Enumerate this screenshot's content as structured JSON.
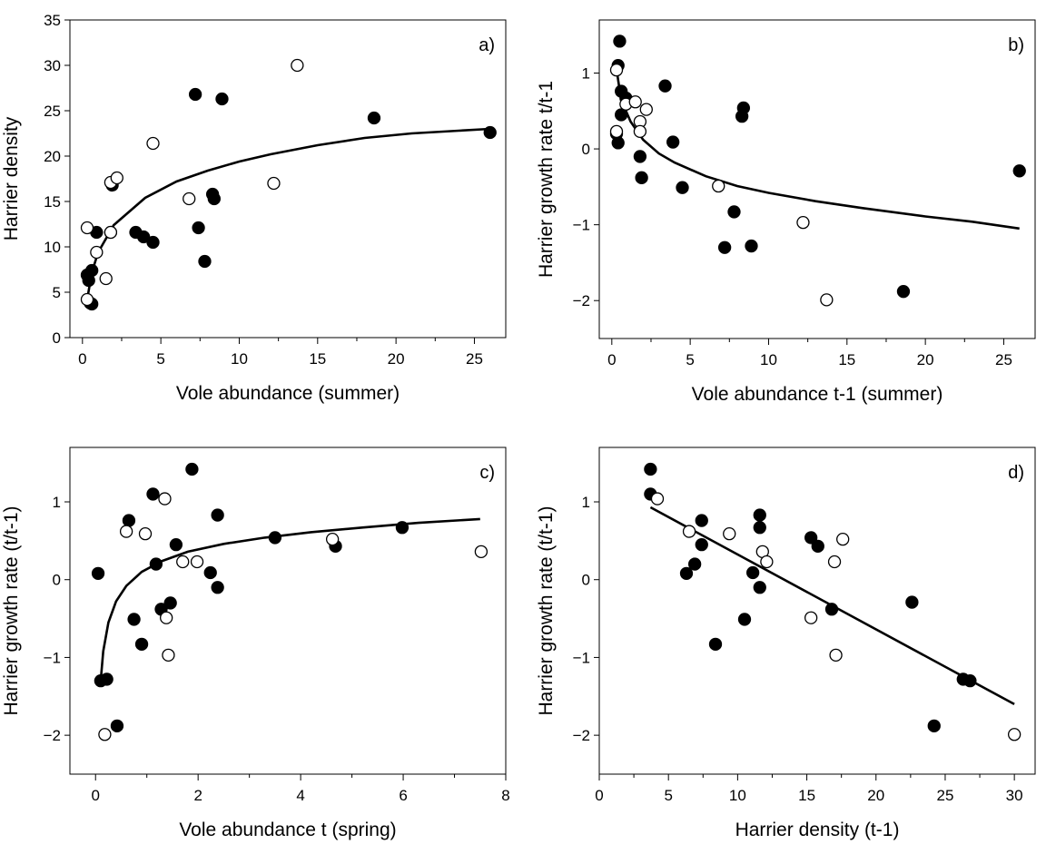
{
  "chart_data": [
    {
      "type": "scatter",
      "panel_label": "a)",
      "xlabel": "Vole abundance (summer)",
      "ylabel": "Harrier density",
      "xlim": [
        -0.8,
        27
      ],
      "ylim": [
        0,
        35
      ],
      "xticks": [
        0,
        5,
        10,
        15,
        20,
        25
      ],
      "yticks": [
        0,
        5,
        10,
        15,
        20,
        25,
        30,
        35
      ],
      "grid": false,
      "fit": {
        "type": "log-curve",
        "x": [
          0.3,
          0.6,
          1,
          2,
          4,
          6,
          8,
          10,
          12,
          15,
          18,
          21,
          24,
          26
        ],
        "y": [
          4.2,
          7.2,
          9.4,
          12.4,
          15.4,
          17.2,
          18.4,
          19.4,
          20.2,
          21.2,
          22.0,
          22.5,
          22.8,
          23.0
        ]
      },
      "series": [
        {
          "marker": "filled",
          "points": [
            [
              0.3,
              6.9
            ],
            [
              0.4,
              6.3
            ],
            [
              0.5,
              3.8
            ],
            [
              0.6,
              3.7
            ],
            [
              0.6,
              7.4
            ],
            [
              0.9,
              11.6
            ],
            [
              1.8,
              11.6
            ],
            [
              1.9,
              16.8
            ],
            [
              3.4,
              11.6
            ],
            [
              3.9,
              11.1
            ],
            [
              4.5,
              10.5
            ],
            [
              7.2,
              26.8
            ],
            [
              7.4,
              12.1
            ],
            [
              7.8,
              8.4
            ],
            [
              8.3,
              15.8
            ],
            [
              8.4,
              15.3
            ],
            [
              8.9,
              26.3
            ],
            [
              18.6,
              24.2
            ],
            [
              26.0,
              22.6
            ]
          ]
        },
        {
          "marker": "open",
          "points": [
            [
              0.3,
              12.1
            ],
            [
              0.3,
              4.2
            ],
            [
              0.9,
              9.4
            ],
            [
              1.5,
              6.5
            ],
            [
              1.8,
              11.6
            ],
            [
              1.8,
              17.1
            ],
            [
              2.2,
              17.6
            ],
            [
              4.5,
              21.4
            ],
            [
              6.8,
              15.3
            ],
            [
              12.2,
              17.0
            ],
            [
              13.7,
              30.0
            ]
          ]
        }
      ]
    },
    {
      "type": "scatter",
      "panel_label": "b)",
      "xlabel": "Vole abundance t-1 (summer)",
      "ylabel": "Harrier growth rate t/t-1",
      "xlim": [
        -0.8,
        27
      ],
      "ylim": [
        -2.5,
        1.7
      ],
      "xticks": [
        0,
        5,
        10,
        15,
        20,
        25
      ],
      "yticks": [
        -2,
        -1,
        0,
        1
      ],
      "grid": false,
      "fit": {
        "type": "log-curve",
        "x": [
          0.3,
          0.5,
          0.8,
          1.2,
          2,
          3,
          4,
          6,
          8,
          10,
          13,
          16,
          20,
          23,
          26
        ],
        "y": [
          1.05,
          0.78,
          0.55,
          0.36,
          0.12,
          -0.06,
          -0.18,
          -0.36,
          -0.49,
          -0.58,
          -0.69,
          -0.78,
          -0.89,
          -0.96,
          -1.05
        ]
      },
      "series": [
        {
          "marker": "filled",
          "points": [
            [
              0.3,
              0.2
            ],
            [
              0.4,
              0.08
            ],
            [
              0.4,
              1.1
            ],
            [
              0.5,
              1.42
            ],
            [
              0.6,
              0.76
            ],
            [
              0.6,
              0.45
            ],
            [
              0.9,
              0.67
            ],
            [
              1.8,
              -0.1
            ],
            [
              1.9,
              -0.38
            ],
            [
              3.4,
              0.83
            ],
            [
              3.9,
              0.09
            ],
            [
              4.5,
              -0.51
            ],
            [
              7.2,
              -1.3
            ],
            [
              7.8,
              -0.83
            ],
            [
              8.3,
              0.43
            ],
            [
              8.4,
              0.54
            ],
            [
              8.9,
              -1.28
            ],
            [
              18.6,
              -1.88
            ],
            [
              26.0,
              -0.29
            ]
          ]
        },
        {
          "marker": "open",
          "points": [
            [
              0.3,
              1.04
            ],
            [
              0.3,
              0.23
            ],
            [
              0.9,
              0.59
            ],
            [
              1.5,
              0.62
            ],
            [
              1.8,
              0.36
            ],
            [
              1.8,
              0.23
            ],
            [
              2.2,
              0.52
            ],
            [
              6.8,
              -0.49
            ],
            [
              12.2,
              -0.97
            ],
            [
              13.7,
              -1.99
            ]
          ]
        }
      ]
    },
    {
      "type": "scatter",
      "panel_label": "c)",
      "xlabel": "Vole abundance t (spring)",
      "ylabel": "Harrier growth rate (t/t-1)",
      "xlim": [
        -0.5,
        8
      ],
      "ylim": [
        -2.5,
        1.7
      ],
      "xticks": [
        0,
        2,
        4,
        6,
        8
      ],
      "yticks": [
        -2,
        -1,
        0,
        1
      ],
      "grid": false,
      "fit": {
        "type": "log-curve",
        "x": [
          0.1,
          0.15,
          0.25,
          0.4,
          0.6,
          0.9,
          1.3,
          1.8,
          2.5,
          3.3,
          4.2,
          5.2,
          6.3,
          7.5
        ],
        "y": [
          -1.3,
          -0.92,
          -0.55,
          -0.28,
          -0.08,
          0.1,
          0.24,
          0.36,
          0.46,
          0.54,
          0.61,
          0.67,
          0.73,
          0.78
        ]
      },
      "series": [
        {
          "marker": "filled",
          "points": [
            [
              0.05,
              0.08
            ],
            [
              0.1,
              -1.3
            ],
            [
              0.22,
              -1.28
            ],
            [
              0.42,
              -1.88
            ],
            [
              0.65,
              0.76
            ],
            [
              0.75,
              -0.51
            ],
            [
              0.9,
              -0.83
            ],
            [
              1.12,
              1.1
            ],
            [
              1.18,
              0.2
            ],
            [
              1.28,
              -0.38
            ],
            [
              1.46,
              -0.3
            ],
            [
              1.57,
              0.45
            ],
            [
              1.88,
              1.42
            ],
            [
              2.24,
              0.09
            ],
            [
              2.38,
              -0.1
            ],
            [
              2.38,
              0.83
            ],
            [
              3.5,
              0.54
            ],
            [
              4.68,
              0.43
            ],
            [
              5.98,
              0.67
            ]
          ]
        },
        {
          "marker": "open",
          "points": [
            [
              0.18,
              -1.99
            ],
            [
              0.6,
              0.62
            ],
            [
              0.97,
              0.59
            ],
            [
              1.35,
              1.04
            ],
            [
              1.38,
              -0.49
            ],
            [
              1.42,
              -0.97
            ],
            [
              1.7,
              0.23
            ],
            [
              1.98,
              0.23
            ],
            [
              4.62,
              0.52
            ],
            [
              7.52,
              0.36
            ]
          ]
        }
      ]
    },
    {
      "type": "scatter",
      "panel_label": "d)",
      "xlabel": "Harrier density (t-1)",
      "ylabel": "Harrier growth rate (t/t-1)",
      "xlim": [
        0,
        31.5
      ],
      "ylim": [
        -2.5,
        1.7
      ],
      "xticks": [
        0,
        5,
        10,
        15,
        20,
        25,
        30
      ],
      "yticks": [
        -2,
        -1,
        0,
        1
      ],
      "grid": false,
      "fit": {
        "type": "line",
        "x": [
          3.7,
          30.0
        ],
        "y": [
          0.93,
          -1.6
        ]
      },
      "series": [
        {
          "marker": "filled",
          "points": [
            [
              3.7,
              1.42
            ],
            [
              3.7,
              1.1
            ],
            [
              6.3,
              0.08
            ],
            [
              6.9,
              0.2
            ],
            [
              7.4,
              0.76
            ],
            [
              7.4,
              0.45
            ],
            [
              8.4,
              -0.83
            ],
            [
              10.5,
              -0.51
            ],
            [
              11.1,
              0.09
            ],
            [
              11.6,
              0.67
            ],
            [
              11.6,
              0.83
            ],
            [
              11.6,
              -0.1
            ],
            [
              15.3,
              0.54
            ],
            [
              15.8,
              0.43
            ],
            [
              16.8,
              -0.38
            ],
            [
              22.6,
              -0.29
            ],
            [
              24.2,
              -1.88
            ],
            [
              26.3,
              -1.28
            ],
            [
              26.8,
              -1.3
            ]
          ]
        },
        {
          "marker": "open",
          "points": [
            [
              4.2,
              1.04
            ],
            [
              6.5,
              0.62
            ],
            [
              9.4,
              0.59
            ],
            [
              11.8,
              0.36
            ],
            [
              12.1,
              0.23
            ],
            [
              15.3,
              -0.49
            ],
            [
              17.0,
              0.23
            ],
            [
              17.1,
              -0.97
            ],
            [
              17.6,
              0.52
            ],
            [
              30.0,
              -1.99
            ]
          ]
        }
      ]
    }
  ]
}
